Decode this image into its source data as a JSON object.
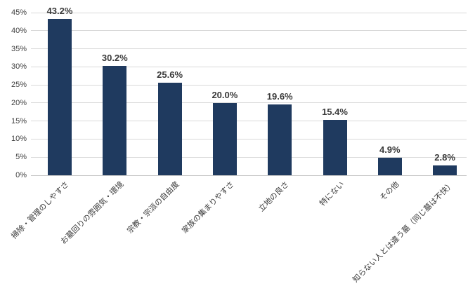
{
  "chart_data": {
    "type": "bar",
    "title": "",
    "xlabel": "",
    "ylabel": "",
    "categories": [
      "掃除・管理のしやすさ",
      "お墓回りの雰囲気・環境",
      "宗教・宗派の自由度",
      "家族の集まりやすさ",
      "立地の良さ",
      "特にない",
      "その他",
      "知らない人とは違う墓（同じ墓は不快）"
    ],
    "values": [
      43.2,
      30.2,
      25.6,
      20.0,
      19.6,
      15.4,
      4.9,
      2.8
    ],
    "value_labels": [
      "43.2%",
      "30.2%",
      "25.6%",
      "20.0%",
      "19.6%",
      "15.4%",
      "4.9%",
      "2.8%"
    ],
    "ylim": [
      0,
      45
    ],
    "y_tick_values": [
      0,
      5,
      10,
      15,
      20,
      25,
      30,
      35,
      40,
      45
    ],
    "y_tick_labels": [
      "0%",
      "5%",
      "10%",
      "15%",
      "20%",
      "25%",
      "30%",
      "35%",
      "40%",
      "45%"
    ],
    "grid": true,
    "legend": false,
    "colors": {
      "bar": "#1f3a5f",
      "gridline": "#d9d9d9",
      "axis_line": "#c8c8c8",
      "tick_label": "#404040",
      "value_label": "#3a3a3a",
      "category_label": "#3a3a3a",
      "background": "#ffffff"
    }
  }
}
